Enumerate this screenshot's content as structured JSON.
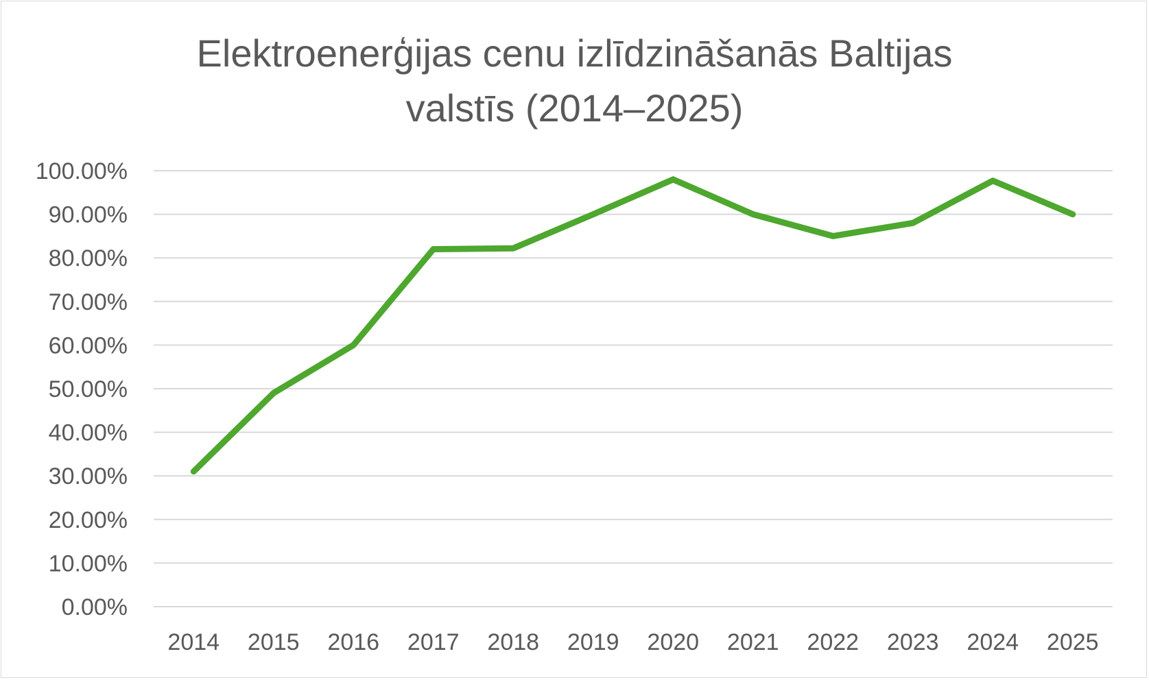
{
  "chart_data": {
    "type": "line",
    "title": "Elektroenerģijas cenu izlīdzināšanās Baltijas valstīs (2014–2025)",
    "xlabel": "",
    "ylabel": "",
    "categories": [
      "2014",
      "2015",
      "2016",
      "2017",
      "2018",
      "2019",
      "2020",
      "2021",
      "2022",
      "2023",
      "2024",
      "2025"
    ],
    "series": [
      {
        "color": "#4ea72e",
        "values": [
          0.31,
          0.49,
          0.6,
          0.82,
          0.822,
          0.9,
          0.98,
          0.9,
          0.85,
          0.88,
          0.977,
          0.9
        ]
      }
    ],
    "ylim": [
      0,
      1
    ],
    "yticks": [
      0,
      0.1,
      0.2,
      0.3,
      0.4,
      0.5,
      0.6,
      0.7,
      0.8,
      0.9,
      1.0
    ],
    "ytick_labels": [
      "0.00%",
      "10.00%",
      "20.00%",
      "30.00%",
      "40.00%",
      "50.00%",
      "60.00%",
      "70.00%",
      "80.00%",
      "90.00%",
      "100.00%"
    ],
    "grid": true,
    "legend": "none"
  }
}
